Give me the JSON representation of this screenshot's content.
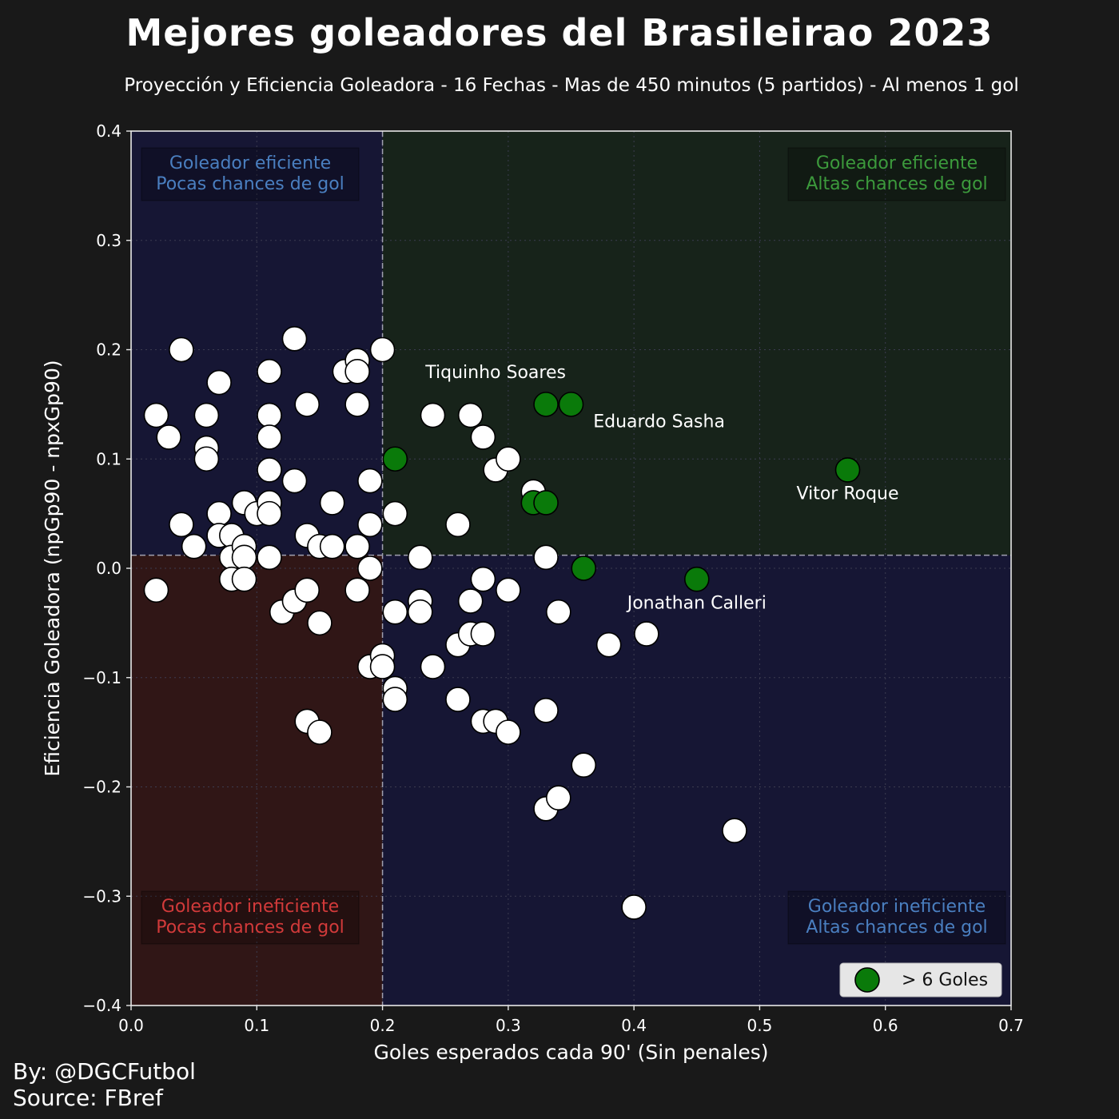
{
  "title": "Mejores goleadores del Brasileirao 2023",
  "subtitle": "Proyección y Eficiencia Goleadora - 16 Fechas - Mas de 450 minutos (5 partidos) - Al menos 1 gol",
  "credits": {
    "by": "By: @DGCFutbol",
    "source": "Source: FBref"
  },
  "colors": {
    "background": "#191919",
    "quadrant_blue": "#161634",
    "quadrant_green": "#17231a",
    "quadrant_red": "#301616",
    "highlight_point": "#0a7a0a",
    "normal_point": "#ffffff",
    "blue_text": "#4a7fc0",
    "green_text": "#3c9a3c",
    "red_text": "#d23a3a"
  },
  "chart_data": {
    "type": "scatter",
    "xlabel": "Goles esperados cada 90' (Sin penales)",
    "ylabel": "Eficiencia Goleadora (npGp90 - npxGp90)",
    "xlim": [
      0.0,
      0.7
    ],
    "ylim": [
      -0.4,
      0.4
    ],
    "x_ticks": [
      "0.0",
      "0.1",
      "0.2",
      "0.3",
      "0.4",
      "0.5",
      "0.6",
      "0.7"
    ],
    "y_ticks": [
      "0.4",
      "0.3",
      "0.2",
      "0.1",
      "0.0",
      "−0.1",
      "−0.2",
      "−0.3",
      "−0.4"
    ],
    "grid": true,
    "reference_lines": {
      "x": 0.2,
      "y": 0.012
    },
    "quadrants": {
      "top_left": [
        "Goleador eficiente",
        "Pocas chances de gol"
      ],
      "top_right": [
        "Goleador eficiente",
        "Altas chances de gol"
      ],
      "bottom_left": [
        "Goleador ineficiente",
        "Pocas chances de gol"
      ],
      "bottom_right": [
        "Goleador ineficiente",
        "Altas chances de gol"
      ]
    },
    "legend": {
      "label": "> 6 Goles",
      "placement": "bottom-right"
    },
    "series": [
      {
        "name": "others",
        "points": [
          [
            0.02,
            0.14
          ],
          [
            0.03,
            0.12
          ],
          [
            0.04,
            0.2
          ],
          [
            0.04,
            0.04
          ],
          [
            0.05,
            0.02
          ],
          [
            0.06,
            0.14
          ],
          [
            0.06,
            0.11
          ],
          [
            0.06,
            0.1
          ],
          [
            0.07,
            0.17
          ],
          [
            0.07,
            0.05
          ],
          [
            0.07,
            0.03
          ],
          [
            0.08,
            0.03
          ],
          [
            0.08,
            0.01
          ],
          [
            0.08,
            -0.01
          ],
          [
            0.09,
            0.06
          ],
          [
            0.09,
            0.02
          ],
          [
            0.09,
            0.01
          ],
          [
            0.09,
            -0.01
          ],
          [
            0.1,
            0.05
          ],
          [
            0.11,
            0.18
          ],
          [
            0.11,
            0.14
          ],
          [
            0.11,
            0.12
          ],
          [
            0.11,
            0.09
          ],
          [
            0.11,
            0.06
          ],
          [
            0.11,
            0.05
          ],
          [
            0.11,
            0.01
          ],
          [
            0.12,
            -0.04
          ],
          [
            0.13,
            0.21
          ],
          [
            0.13,
            0.08
          ],
          [
            0.13,
            -0.03
          ],
          [
            0.14,
            0.15
          ],
          [
            0.14,
            0.03
          ],
          [
            0.14,
            -0.02
          ],
          [
            0.14,
            -0.14
          ],
          [
            0.15,
            0.02
          ],
          [
            0.15,
            -0.05
          ],
          [
            0.15,
            -0.15
          ],
          [
            0.16,
            0.06
          ],
          [
            0.16,
            0.02
          ],
          [
            0.17,
            0.18
          ],
          [
            0.18,
            0.19
          ],
          [
            0.18,
            0.18
          ],
          [
            0.18,
            0.15
          ],
          [
            0.18,
            0.02
          ],
          [
            0.18,
            -0.02
          ],
          [
            0.19,
            0.08
          ],
          [
            0.19,
            0.04
          ],
          [
            0.19,
            0.0
          ],
          [
            0.19,
            -0.09
          ],
          [
            0.2,
            0.2
          ],
          [
            0.2,
            -0.08
          ],
          [
            0.2,
            -0.09
          ],
          [
            0.21,
            0.05
          ],
          [
            0.21,
            -0.04
          ],
          [
            0.21,
            -0.11
          ],
          [
            0.21,
            -0.12
          ],
          [
            0.23,
            0.01
          ],
          [
            0.23,
            -0.03
          ],
          [
            0.23,
            -0.04
          ],
          [
            0.24,
            0.14
          ],
          [
            0.24,
            -0.09
          ],
          [
            0.26,
            0.04
          ],
          [
            0.26,
            -0.07
          ],
          [
            0.26,
            -0.12
          ],
          [
            0.27,
            0.14
          ],
          [
            0.27,
            -0.03
          ],
          [
            0.27,
            -0.06
          ],
          [
            0.28,
            0.12
          ],
          [
            0.28,
            -0.01
          ],
          [
            0.28,
            -0.06
          ],
          [
            0.28,
            -0.14
          ],
          [
            0.29,
            0.09
          ],
          [
            0.29,
            -0.14
          ],
          [
            0.3,
            0.1
          ],
          [
            0.3,
            -0.02
          ],
          [
            0.3,
            -0.15
          ],
          [
            0.32,
            0.07
          ],
          [
            0.33,
            0.01
          ],
          [
            0.33,
            -0.13
          ],
          [
            0.33,
            -0.22
          ],
          [
            0.34,
            -0.04
          ],
          [
            0.34,
            -0.21
          ],
          [
            0.36,
            -0.18
          ],
          [
            0.38,
            -0.07
          ],
          [
            0.4,
            -0.31
          ],
          [
            0.41,
            -0.06
          ],
          [
            0.48,
            -0.24
          ],
          [
            0.02,
            -0.02
          ]
        ]
      },
      {
        "name": "> 6 Goles",
        "points": [
          [
            0.21,
            0.1
          ],
          [
            0.32,
            0.06
          ],
          [
            0.33,
            0.06
          ],
          [
            0.33,
            0.15
          ],
          [
            0.35,
            0.15
          ],
          [
            0.36,
            0.0
          ],
          [
            0.45,
            -0.01
          ],
          [
            0.57,
            0.09
          ]
        ]
      }
    ],
    "annotations": [
      {
        "text": "Tiquinho Soares",
        "x": 0.29,
        "y": 0.18
      },
      {
        "text": "Eduardo Sasha",
        "x": 0.42,
        "y": 0.135
      },
      {
        "text": "Vitor Roque",
        "x": 0.57,
        "y": 0.069
      },
      {
        "text": "Jonathan Calleri",
        "x": 0.45,
        "y": -0.031
      }
    ]
  }
}
